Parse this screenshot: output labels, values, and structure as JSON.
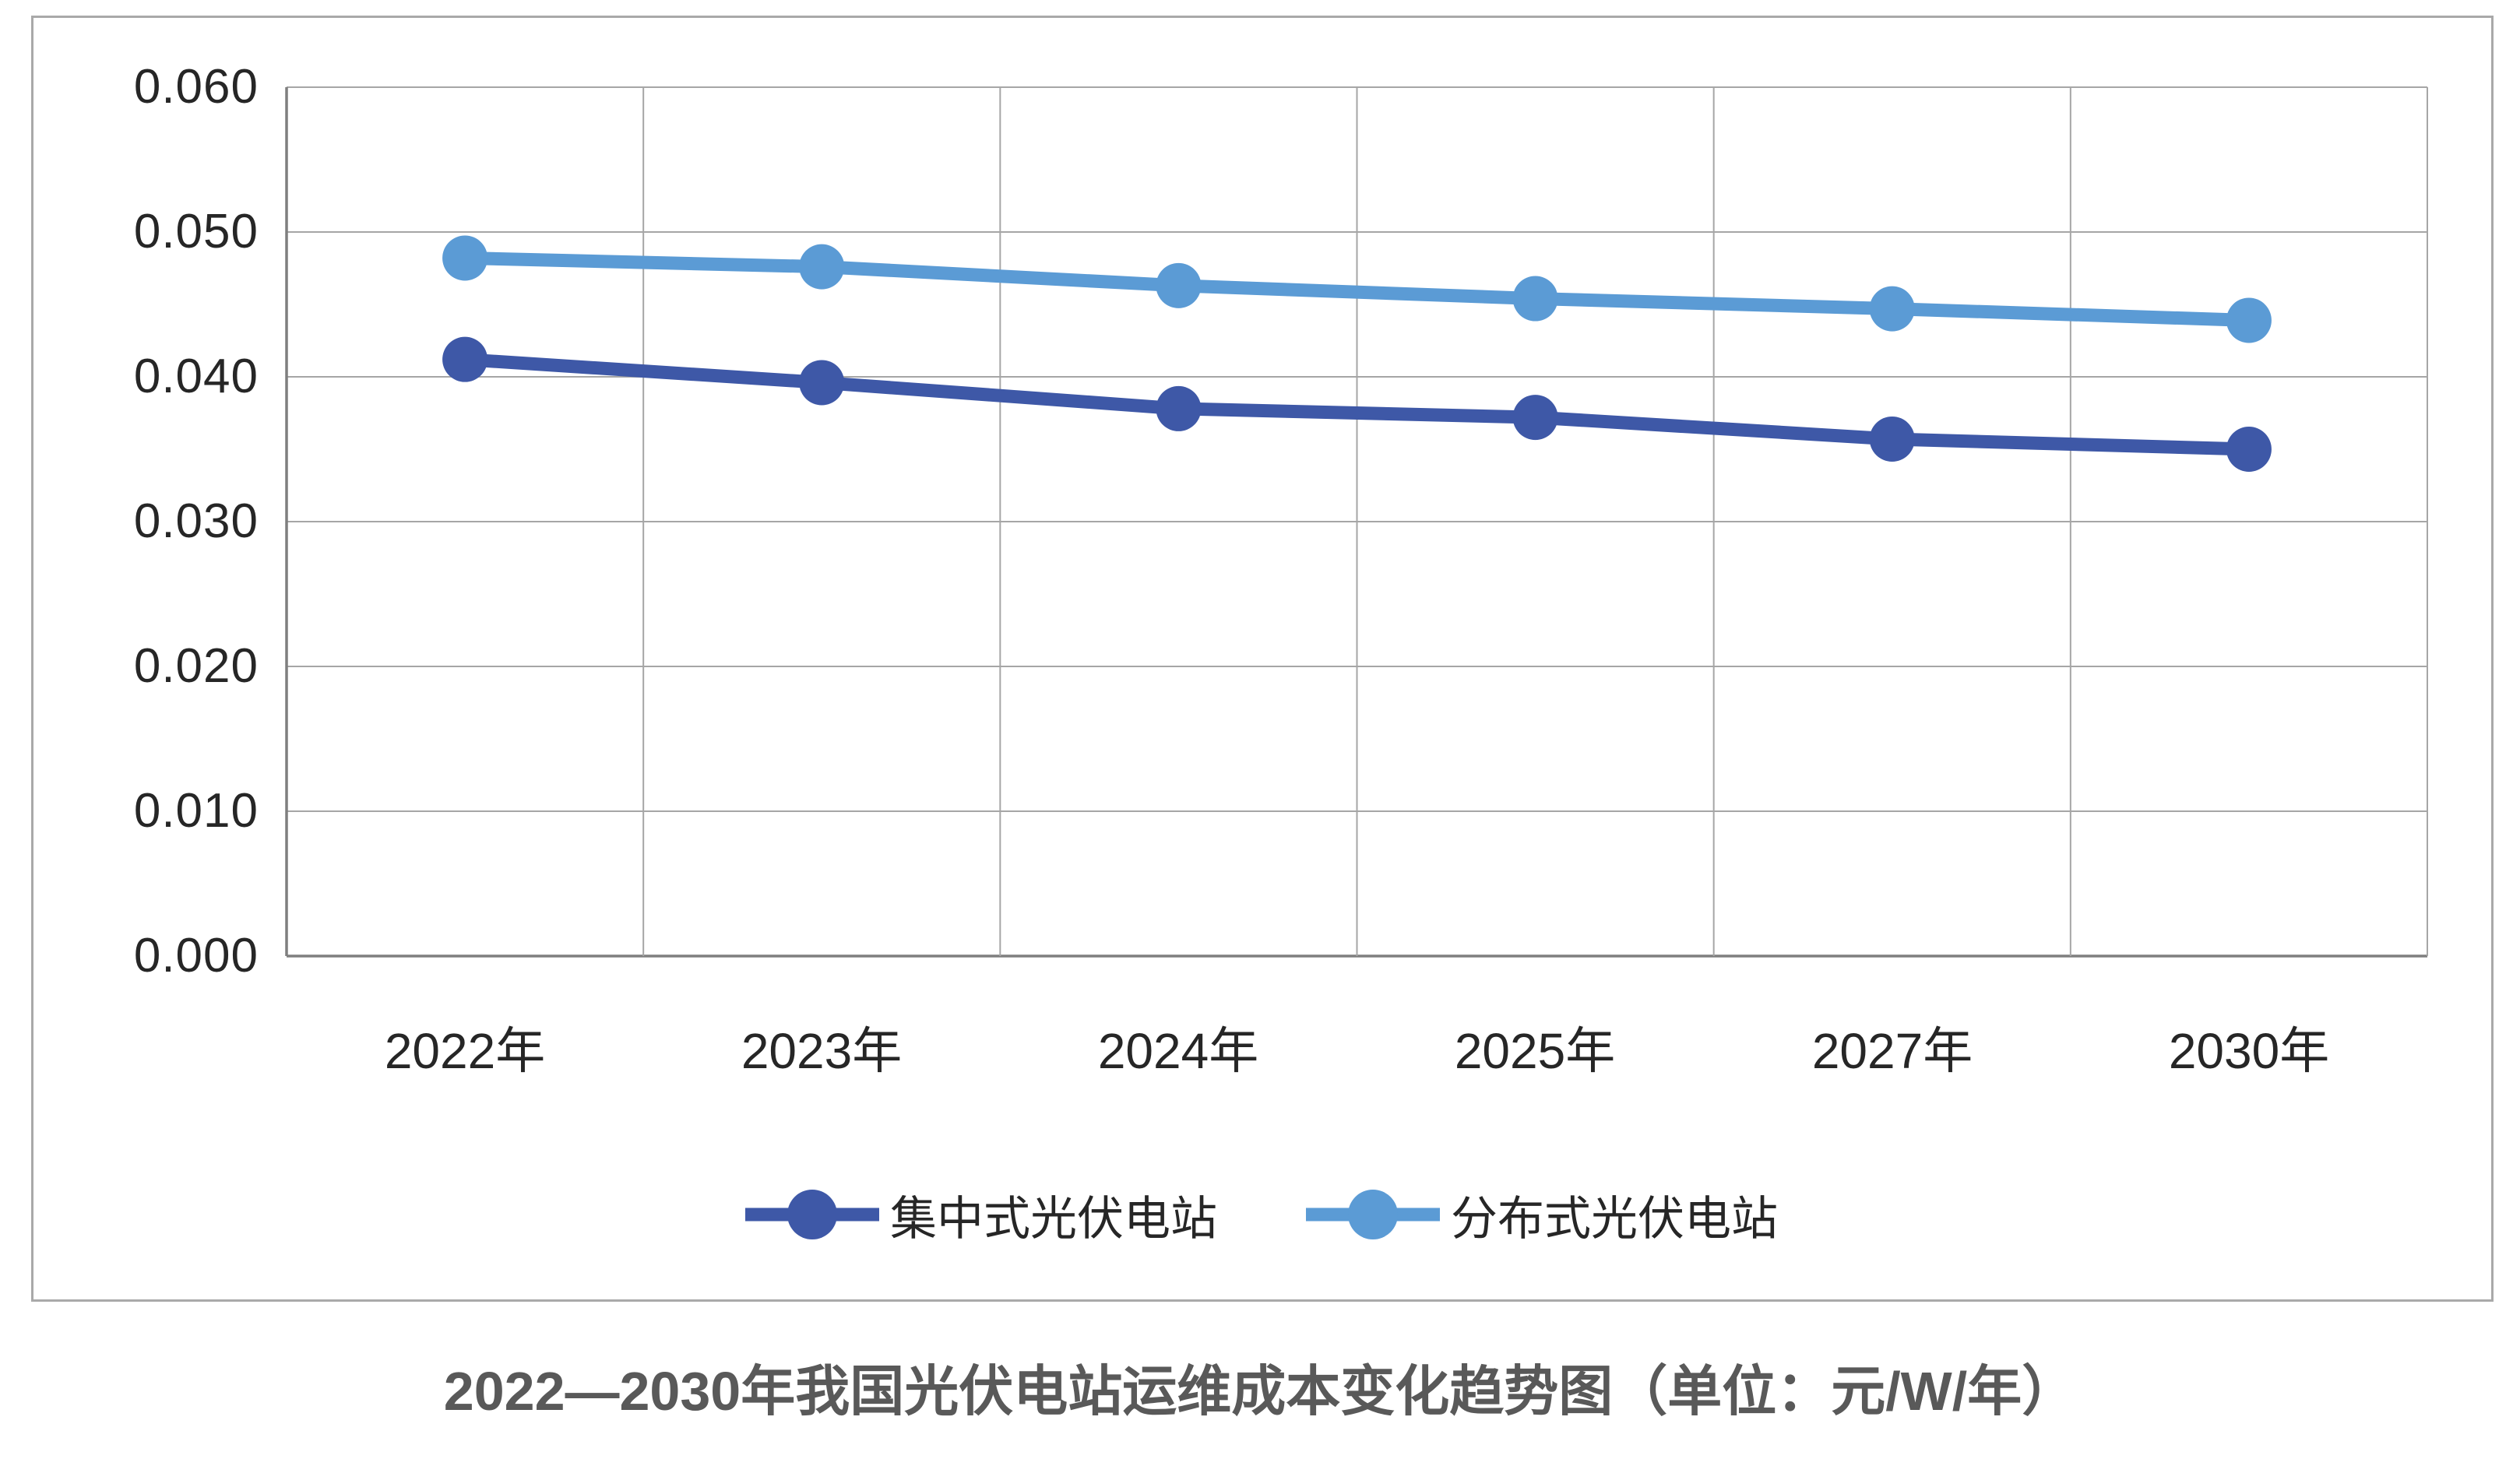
{
  "page": {
    "caption": "2022—2030年我国光伏电站运维成本变化趋势图（单位：元/W/年）"
  },
  "chart_data": {
    "type": "line",
    "title": "2022—2030年我国光伏电站运维成本变化趋势图",
    "unit": "元/W/年",
    "categories": [
      "2022年",
      "2023年",
      "2024年",
      "2025年",
      "2027年",
      "2030年"
    ],
    "series": [
      {
        "name": "集中式光伏电站",
        "color": "#3E58A7",
        "values": [
          0.0412,
          0.0396,
          0.0378,
          0.0372,
          0.0357,
          0.035
        ]
      },
      {
        "name": "分布式光伏电站",
        "color": "#5B9BD5",
        "values": [
          0.0482,
          0.0476,
          0.0463,
          0.0454,
          0.0447,
          0.0439
        ]
      }
    ],
    "ylim": [
      0.0,
      0.06
    ],
    "ytick_step": 0.01,
    "yticks": [
      "0.060",
      "0.050",
      "0.040",
      "0.030",
      "0.020",
      "0.010",
      "0.000"
    ],
    "grid": true,
    "legend_position": "bottom-inside",
    "colors": {
      "gridline": "#a6a6a6",
      "axis": "#7f7f7f",
      "tick_text": "#262626",
      "caption_text": "#595959",
      "border": "#a9a9a9"
    }
  }
}
